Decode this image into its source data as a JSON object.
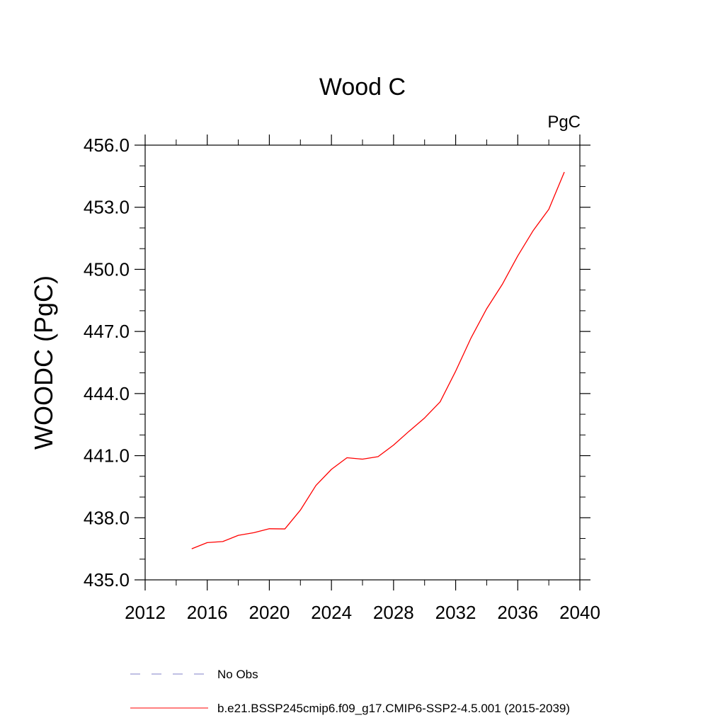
{
  "chart_data": {
    "type": "line",
    "title": "Wood C",
    "units": "PgC",
    "ylabel": "WOODC  (PgC)",
    "xlabel": "",
    "xlim": [
      2012,
      2040
    ],
    "ylim": [
      435.0,
      456.0
    ],
    "xticks": [
      2012,
      2016,
      2020,
      2024,
      2028,
      2032,
      2036,
      2040
    ],
    "xtick_labels": [
      "2012",
      "2016",
      "2020",
      "2024",
      "2028",
      "2032",
      "2036",
      "2040"
    ],
    "yticks": [
      435.0,
      438.0,
      441.0,
      444.0,
      447.0,
      450.0,
      453.0,
      456.0
    ],
    "ytick_labels": [
      "435.0",
      "438.0",
      "441.0",
      "444.0",
      "447.0",
      "450.0",
      "453.0",
      "456.0"
    ],
    "series": [
      {
        "name": "b.e21.BSSP245cmip6.f09_g17.CMIP6-SSP2-4.5.001 (2015-2039)",
        "color": "#ff0000",
        "style": "solid",
        "x": [
          2015,
          2016,
          2017,
          2018,
          2019,
          2020,
          2021,
          2022,
          2023,
          2024,
          2025,
          2026,
          2027,
          2028,
          2029,
          2030,
          2031,
          2032,
          2033,
          2034,
          2035,
          2036,
          2037,
          2038,
          2039
        ],
        "y": [
          436.5,
          436.8,
          436.85,
          437.15,
          437.28,
          437.47,
          437.46,
          438.37,
          439.56,
          440.34,
          440.9,
          440.83,
          440.95,
          441.51,
          442.18,
          442.82,
          443.6,
          445.08,
          446.7,
          448.1,
          449.27,
          450.65,
          451.88,
          452.9,
          454.7
        ]
      }
    ],
    "legend": [
      {
        "label": "No Obs",
        "color": "#8080c8",
        "style": "dashed"
      },
      {
        "label": "b.e21.BSSP245cmip6.f09_g17.CMIP6-SSP2-4.5.001 (2015-2039)",
        "color": "#ff0000",
        "style": "solid"
      }
    ]
  }
}
